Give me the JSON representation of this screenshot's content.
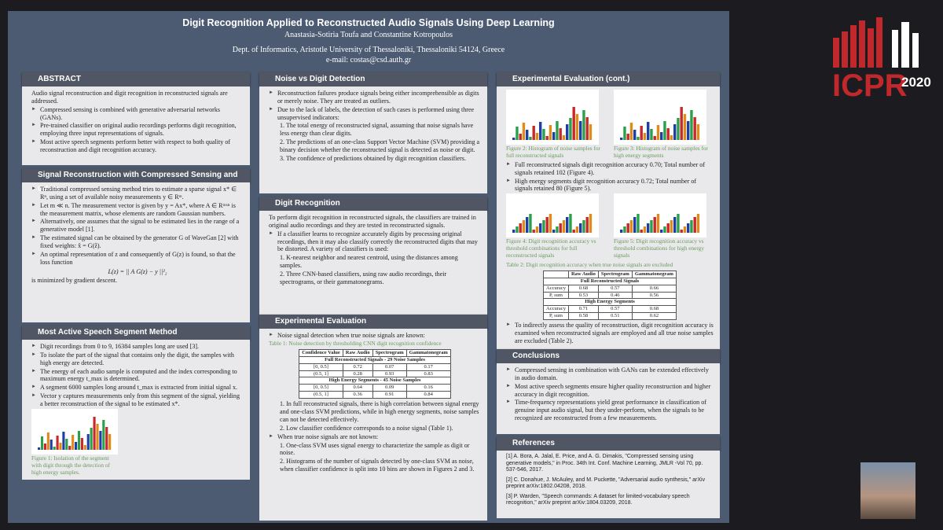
{
  "header": {
    "title": "Digit Recognition Applied to Reconstructed Audio Signals Using Deep Learning",
    "authors": "Anastasia-Sotiria Toufa and Constantine Kotropoulos",
    "affiliation": "Dept. of Informatics, Aristotle University of Thessaloniki, Thessaloniki 54124, Greece",
    "email": "e-mail: costas@csd.auth.gr"
  },
  "logo": {
    "text": "ICPR",
    "year": "2020"
  },
  "sections": [
    {
      "title": "ABSTRACT",
      "body": [
        {
          "text": "Audio signal reconstruction and digit recognition in reconstructed signals are addressed."
        },
        {
          "bullet": "Compressed sensing is combined with generative adversarial networks (GANs)."
        },
        {
          "bullet": "Pre-trained classifier on original audio recordings performs digit recognition, employing three input representations of signals."
        },
        {
          "bullet": "Most active speech segments perform better with respect to both quality of reconstruction and digit recognition accuracy."
        }
      ]
    },
    {
      "title": "Signal Reconstruction with Compressed Sensing and GANs",
      "body": [
        {
          "bullet": "Traditional compressed sensing method tries to estimate a sparse signal x* ∈ Rⁿ, using a set of available noisy measurements y ∈ Rᵐ."
        },
        {
          "bullet": "Let m ≪ n. The measurement vector is given by y = Ax*, where A ∈ Rᵐˣⁿ is the measurement matrix, whose elements are random Gaussian numbers."
        },
        {
          "bullet": "Alternatively, one assumes that the signal to be estimated lies in the range of a generative model [1]."
        },
        {
          "bullet": "The estimated signal can be obtained by the generator G of WaveGan [2] with fixed weights: x̂ = G(ẑ)."
        },
        {
          "bullet": "An optimal representation of z and consequently of G(z) is found, so that the loss function"
        },
        {
          "eq": "L(z) = || A G(z) − y ||²₂"
        },
        {
          "text": "is minimized by gradient descent."
        }
      ]
    },
    {
      "title": "Most Active Speech Segment Method",
      "body": [
        {
          "bullet": "Digit recordings from 0 to 9, 16384 samples long are used [3]."
        },
        {
          "bullet": "To isolate the part of the signal that contains only the digit, the samples with high energy are detected."
        },
        {
          "bullet": "The energy of each audio sample is computed and the index corresponding to maximum energy t_max is determined."
        },
        {
          "bullet": "A segment 6000 samples long around t_max is extracted from initial signal x."
        },
        {
          "bullet": "Vector y captures measurements only from this segment of the signal, yielding a better reconstruction of the signal to be estimated x*."
        },
        {
          "figure": "Figure 1: Isolation of the segment with digit through the detection of high energy samples."
        }
      ]
    },
    {
      "title": "Noise vs Digit Detection",
      "body": [
        {
          "bullet": "Reconstruction failures produce signals being either incomprehensible as digits or merely noise. They are treated as outliers."
        },
        {
          "bullet": "Due to the lack of labels, the detection of such cases is performed using three unsupervised indicators:"
        },
        {
          "num": "1. The total energy of reconstructed signal, assuming that noise signals have less energy than clear digits."
        },
        {
          "num": "2. The predictions of an one-class Support Vector Machine (SVM) providing a binary decision whether the reconstructed signal is detected as noise or digit."
        },
        {
          "num": "3. The confidence of predictions obtained by digit recognition classifiers."
        }
      ]
    },
    {
      "title": "Digit Recognition",
      "body": [
        {
          "text": "To perform digit recognition in reconstructed signals, the classifiers are trained in original audio recordings and they are tested in reconstructed signals."
        },
        {
          "bullet": "If a classifier learns to recognize accurately digits by processing original recordings, then it may also classify correctly the reconstructed digits that may be distorted. A variety of classifiers is used:"
        },
        {
          "num": "1. K-nearest neighbor and nearest centroid, using the distances among samples."
        },
        {
          "num": "2. Three CNN-based classifiers, using raw audio recordings, their spectrograms, or their gammatonegrams."
        }
      ]
    },
    {
      "title": "Experimental Evaluation",
      "body": [
        {
          "bullet": "Noise signal detection when true noise signals are known:"
        },
        {
          "table": {
            "caption": "Table 1: Noise detection by thresholding CNN digit recognition confidence",
            "header": [
              "Confidence Value",
              "Raw Audio",
              "Spectrogram",
              "Gammatonegram"
            ],
            "rows": [
              [
                "Full Reconstructed Signals - 29 Noise Samples"
              ],
              [
                "[0, 0.5]",
                "0.72",
                "0.07",
                "0.17"
              ],
              [
                "(0.5, 1]",
                "0.28",
                "0.93",
                "0.83"
              ],
              [
                "High Energy Segments - 45 Noise Samples"
              ],
              [
                "[0, 0.5]",
                "0.64",
                "0.09",
                "0.16"
              ],
              [
                "(0.5, 1]",
                "0.36",
                "0.91",
                "0.84"
              ]
            ]
          }
        },
        {
          "num": "1. In full reconstructed signals, there is high correlation between signal energy and one-class SVM predictions, while in high energy segments, noise samples can not be detected effectively."
        },
        {
          "num": "2. Low classifier confidence corresponds to a noise signal (Table 1)."
        },
        {
          "bullet": "When true noise signals are not known:"
        },
        {
          "num": "1. One-class SVM uses signal energy to characterize the sample as digit or noise."
        },
        {
          "num": "2. Histograms of the number of signals detected by one-class SVM as noise, when classifier confidence is split into 10 bins are shown in Figures 2 and 3."
        }
      ]
    },
    {
      "title": "Experimental Evaluation (cont.)",
      "body": [
        {
          "figures": [
            "Figure 2: Histogram of noise samples for full reconstructed signals",
            "Figure 3: Histogram of noise samples for high energy segments"
          ]
        },
        {
          "bullet": "Full reconstructed signals digit recognition accuracy 0.70; Total number of signals retained 102 (Figure 4)."
        },
        {
          "bullet": "High energy segments digit recognition accuracy 0.72; Total number of signals retained 80 (Figure 5)."
        },
        {
          "figures": [
            "Figure 4: Digit recognition accuracy vs threshold combinations for full reconstructed signals",
            "Figure 5: Digit recognition accuracy vs threshold combinations for high energy signals"
          ]
        },
        {
          "table": {
            "caption": "Table 2: Digit recognition accuracy when true noise signals are excluded",
            "header": [
              "Raw Audio",
              "Spectrogram",
              "Gammatonegram"
            ],
            "rows": [
              [
                "Full Reconstructed Signals"
              ],
              [
                "Accuracy",
                "0.68",
                "0.57",
                "0.66"
              ],
              [
                "P, sum",
                "0.53",
                "0.46",
                "0.56"
              ],
              [
                "High Energy Segments"
              ],
              [
                "Accuracy",
                "0.71",
                "0.57",
                "0.68"
              ],
              [
                "P, sum",
                "0.58",
                "0.51",
                "0.62"
              ]
            ]
          }
        },
        {
          "bullet": "To indirectly assess the quality of reconstruction, digit recognition accuracy is examined when reconstructed signals are employed and all true noise samples are excluded (Table 2)."
        }
      ]
    },
    {
      "title": "Conclusions",
      "body": [
        {
          "bullet": "Compressed sensing in combination with GANs can be extended effectively in audio domain."
        },
        {
          "bullet": "Most active speech segments ensure higher quality reconstruction and higher accuracy in digit recognition."
        },
        {
          "bullet": "Time-frequency representations yield great performance in classification of genuine input audio signal, but they under-perform, when the signals to be recognized are reconstructed from a few measurements."
        }
      ]
    },
    {
      "title": "References",
      "body": [
        {
          "ref": "[1] A. Bora, A. Jalal, E. Price, and A. G. Dimakis, \"Compressed sensing using generative models,\" in Proc. 34th Int. Conf. Machine Learning, JMLR -Vol 70, pp. 537-546, 2017."
        },
        {
          "ref": "[2] C. Donahue, J. McAuley, and M. Puckette, \"Adversarial audio synthesis,\" arXiv preprint arXiv:1802.04208, 2018."
        },
        {
          "ref": "[3] P. Warden, \"Speech commands: A dataset for limited-vocabulary speech recognition,\" arXiv preprint arXiv:1804.03209, 2018."
        }
      ]
    }
  ]
}
